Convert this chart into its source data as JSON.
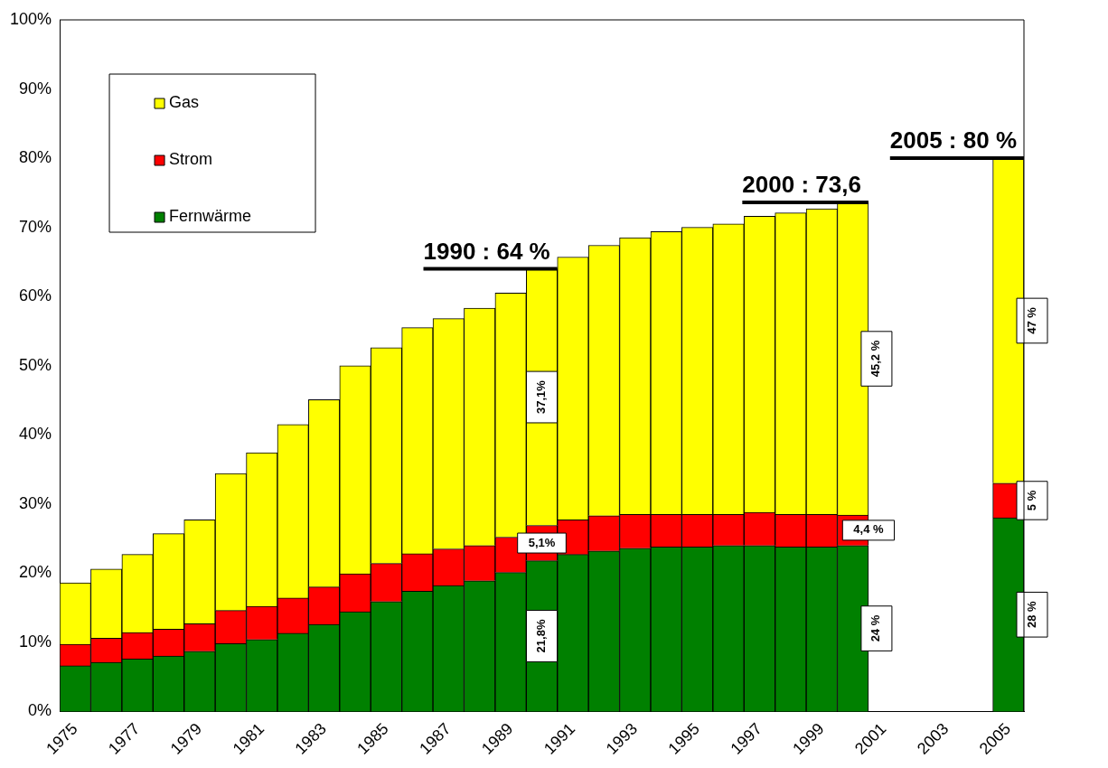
{
  "chart_data": {
    "type": "bar",
    "stacked": true,
    "categories": [
      "1975",
      null,
      "1977",
      null,
      "1979",
      null,
      "1981",
      null,
      "1983",
      null,
      "1985",
      null,
      "1987",
      null,
      "1989",
      null,
      "1991",
      null,
      "1993",
      null,
      "1995",
      null,
      "1997",
      null,
      "1999",
      null,
      "2001",
      null,
      "2003",
      null,
      "2005"
    ],
    "series": [
      {
        "name": "Fernwärme",
        "color": "#008000",
        "values": [
          6.6,
          7.1,
          7.6,
          8.0,
          8.7,
          9.8,
          10.4,
          11.3,
          12.6,
          14.4,
          15.9,
          17.4,
          18.2,
          18.9,
          20.1,
          21.8,
          22.7,
          23.2,
          23.6,
          23.8,
          23.8,
          24.0,
          24.0,
          23.8,
          23.8,
          24,
          null,
          null,
          null,
          null,
          28
        ],
        "value_labels": [
          null,
          null,
          null,
          null,
          null,
          null,
          null,
          null,
          null,
          null,
          null,
          null,
          null,
          null,
          null,
          "21,8%",
          null,
          null,
          null,
          null,
          null,
          null,
          null,
          null,
          null,
          "24 %",
          null,
          null,
          null,
          null,
          "28 %"
        ]
      },
      {
        "name": "Strom",
        "color": "#ff0000",
        "values": [
          3.1,
          3.5,
          3.8,
          3.9,
          4.0,
          4.8,
          4.8,
          5.1,
          5.4,
          5.5,
          5.5,
          5.4,
          5.3,
          5.1,
          5.1,
          5.1,
          5.0,
          5.1,
          4.9,
          4.7,
          4.7,
          4.5,
          4.8,
          4.7,
          4.7,
          4.4,
          null,
          null,
          null,
          null,
          5
        ],
        "value_labels": [
          null,
          null,
          null,
          null,
          null,
          null,
          null,
          null,
          null,
          null,
          null,
          null,
          null,
          null,
          null,
          "5,1%",
          null,
          null,
          null,
          null,
          null,
          null,
          null,
          null,
          null,
          "4,4 %",
          null,
          null,
          null,
          null,
          "5 %"
        ]
      },
      {
        "name": "Gas",
        "color": "#ffff00",
        "values": [
          8.9,
          10.0,
          11.3,
          13.8,
          15.0,
          19.8,
          22.2,
          25.1,
          27.1,
          30.1,
          31.2,
          32.7,
          33.3,
          34.3,
          35.3,
          37.1,
          38.0,
          39.1,
          40.0,
          40.9,
          41.5,
          42.0,
          42.8,
          43.6,
          44.2,
          45.2,
          null,
          null,
          null,
          null,
          47
        ],
        "value_labels": [
          null,
          null,
          null,
          null,
          null,
          null,
          null,
          null,
          null,
          null,
          null,
          null,
          null,
          null,
          null,
          "37,1%",
          null,
          null,
          null,
          null,
          null,
          null,
          null,
          null,
          null,
          "45,2 %",
          null,
          null,
          null,
          null,
          "47 %"
        ]
      }
    ],
    "ylim": [
      0,
      100
    ],
    "yticks": [
      {
        "value": 0,
        "label": "0%"
      },
      {
        "value": 10,
        "label": "10%"
      },
      {
        "value": 20,
        "label": "20%"
      },
      {
        "value": 30,
        "label": "30%"
      },
      {
        "value": 40,
        "label": "40%"
      },
      {
        "value": 50,
        "label": "50%"
      },
      {
        "value": 60,
        "label": "60%"
      },
      {
        "value": 70,
        "label": "70%"
      },
      {
        "value": 80,
        "label": "80%"
      },
      {
        "value": 90,
        "label": "90%"
      },
      {
        "value": 100,
        "label": "100%"
      }
    ],
    "annotations": [
      "1990 : 64 %",
      "2000 : 73,6",
      {
        "text": "2005 : 80 %",
        "x": "2005",
        "y": 80
      }
    ],
    "grid": false,
    "legend": "top left"
  }
}
